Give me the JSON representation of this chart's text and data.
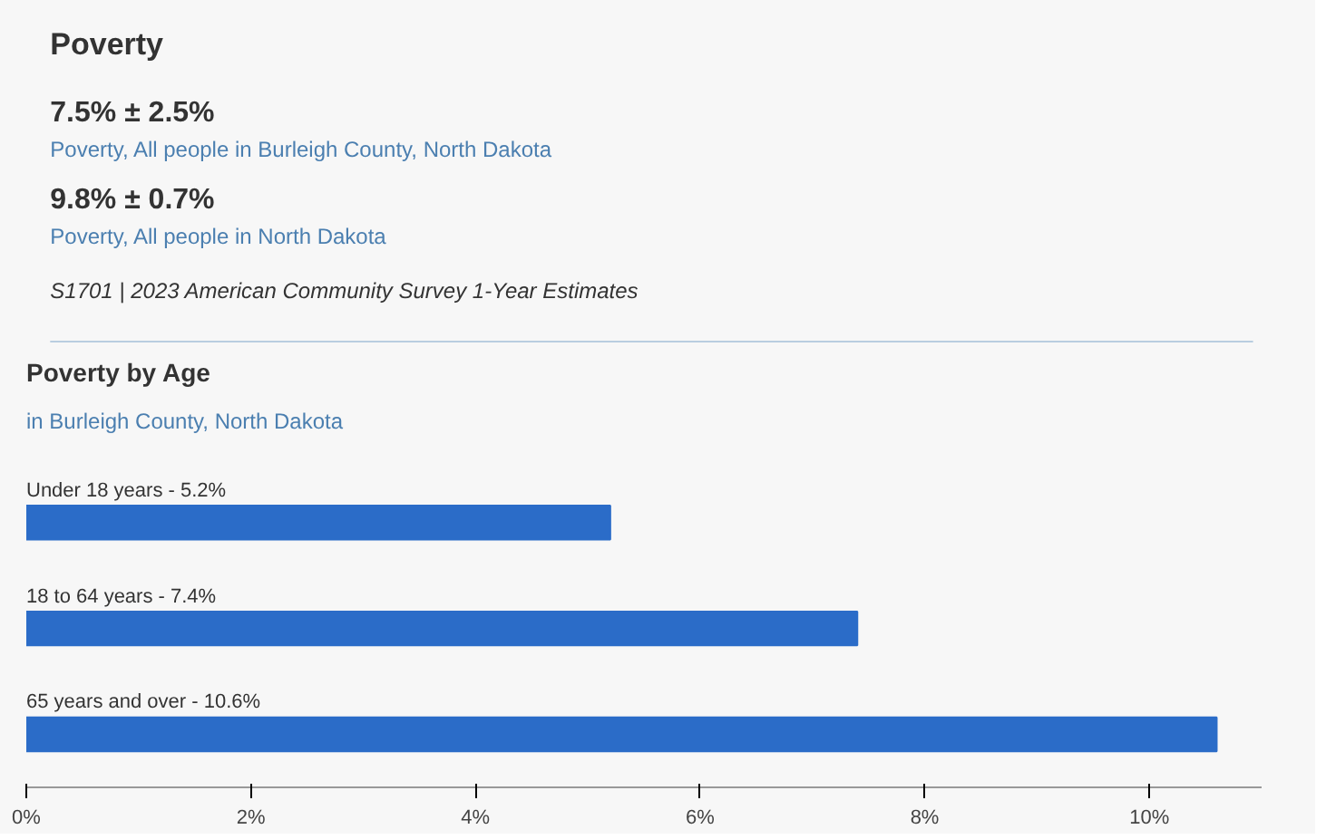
{
  "chart_data": [
    {
      "type": "other",
      "title": "Poverty",
      "annotations": [
        "7.5% ± 2.5%",
        "Poverty, All people in Burleigh County, North Dakota",
        "9.8% ± 0.7%",
        "Poverty, All people in North Dakota",
        "S1701 | 2023 American Community Survey 1-Year Estimates"
      ]
    },
    {
      "type": "bar",
      "orientation": "horizontal",
      "title": "Poverty by Age",
      "subtitle": "in Burleigh County, North Dakota",
      "categories": [
        "Under 18 years -",
        "18 to 64 years -",
        "65 years and over -"
      ],
      "values": [
        5.2,
        7.4,
        10.6
      ],
      "value_labels": [
        "5.2%",
        "7.4%",
        "10.6%"
      ],
      "color": "#2b6cc8",
      "xlim": [
        0,
        11
      ],
      "xticks": [
        {
          "value": 0,
          "label": "0%"
        },
        {
          "value": 2,
          "label": "2%"
        },
        {
          "value": 4,
          "label": "4%"
        },
        {
          "value": 6,
          "label": "6%"
        },
        {
          "value": 8,
          "label": "8%"
        },
        {
          "value": 10,
          "label": "10%"
        }
      ],
      "grid": false
    }
  ]
}
